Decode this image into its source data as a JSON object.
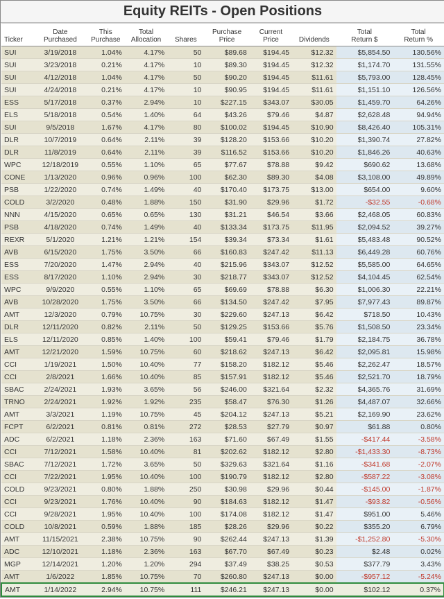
{
  "title": "Equity REITs - Open Positions",
  "styling": {
    "body_bg": "#ffffff",
    "tan_odd": "#e5e2cf",
    "tan_even": "#efede0",
    "blue_odd": "#dde8f0",
    "blue_even": "#e9f1f7",
    "neg_color": "#c0392b",
    "hl_border": "#2e8b3d",
    "font": "Arial",
    "title_fontsize": 20,
    "cell_fontsize": 10.5,
    "header_fontsize": 10
  },
  "columns": [
    "Ticker",
    "Date Purchased",
    "This Purchase",
    "Total Allocation",
    "Shares",
    "Purchase Price",
    "Current Price",
    "Dividends",
    "Total Return $",
    "Total Return %"
  ],
  "rows": [
    {
      "tk": "SUI",
      "dt": "3/19/2018",
      "tp": "1.04%",
      "ta": "4.17%",
      "sh": "50",
      "pp": "$89.68",
      "cp": "$194.45",
      "dv": "$12.32",
      "tr": "$5,854.50",
      "trp": "130.56%"
    },
    {
      "tk": "SUI",
      "dt": "3/23/2018",
      "tp": "0.21%",
      "ta": "4.17%",
      "sh": "10",
      "pp": "$89.30",
      "cp": "$194.45",
      "dv": "$12.32",
      "tr": "$1,174.70",
      "trp": "131.55%"
    },
    {
      "tk": "SUI",
      "dt": "4/12/2018",
      "tp": "1.04%",
      "ta": "4.17%",
      "sh": "50",
      "pp": "$90.20",
      "cp": "$194.45",
      "dv": "$11.61",
      "tr": "$5,793.00",
      "trp": "128.45%"
    },
    {
      "tk": "SUI",
      "dt": "4/24/2018",
      "tp": "0.21%",
      "ta": "4.17%",
      "sh": "10",
      "pp": "$90.95",
      "cp": "$194.45",
      "dv": "$11.61",
      "tr": "$1,151.10",
      "trp": "126.56%"
    },
    {
      "tk": "ESS",
      "dt": "5/17/2018",
      "tp": "0.37%",
      "ta": "2.94%",
      "sh": "10",
      "pp": "$227.15",
      "cp": "$343.07",
      "dv": "$30.05",
      "tr": "$1,459.70",
      "trp": "64.26%"
    },
    {
      "tk": "ELS",
      "dt": "5/18/2018",
      "tp": "0.54%",
      "ta": "1.40%",
      "sh": "64",
      "pp": "$43.26",
      "cp": "$79.46",
      "dv": "$4.87",
      "tr": "$2,628.48",
      "trp": "94.94%"
    },
    {
      "tk": "SUI",
      "dt": "9/5/2018",
      "tp": "1.67%",
      "ta": "4.17%",
      "sh": "80",
      "pp": "$100.02",
      "cp": "$194.45",
      "dv": "$10.90",
      "tr": "$8,426.40",
      "trp": "105.31%"
    },
    {
      "tk": "DLR",
      "dt": "10/7/2019",
      "tp": "0.64%",
      "ta": "2.11%",
      "sh": "39",
      "pp": "$128.20",
      "cp": "$153.66",
      "dv": "$10.20",
      "tr": "$1,390.74",
      "trp": "27.82%"
    },
    {
      "tk": "DLR",
      "dt": "11/8/2019",
      "tp": "0.64%",
      "ta": "2.11%",
      "sh": "39",
      "pp": "$116.52",
      "cp": "$153.66",
      "dv": "$10.20",
      "tr": "$1,846.26",
      "trp": "40.63%"
    },
    {
      "tk": "WPC",
      "dt": "12/18/2019",
      "tp": "0.55%",
      "ta": "1.10%",
      "sh": "65",
      "pp": "$77.67",
      "cp": "$78.88",
      "dv": "$9.42",
      "tr": "$690.62",
      "trp": "13.68%"
    },
    {
      "tk": "CONE",
      "dt": "1/13/2020",
      "tp": "0.96%",
      "ta": "0.96%",
      "sh": "100",
      "pp": "$62.30",
      "cp": "$89.30",
      "dv": "$4.08",
      "tr": "$3,108.00",
      "trp": "49.89%"
    },
    {
      "tk": "PSB",
      "dt": "1/22/2020",
      "tp": "0.74%",
      "ta": "1.49%",
      "sh": "40",
      "pp": "$170.40",
      "cp": "$173.75",
      "dv": "$13.00",
      "tr": "$654.00",
      "trp": "9.60%"
    },
    {
      "tk": "COLD",
      "dt": "3/2/2020",
      "tp": "0.48%",
      "ta": "1.88%",
      "sh": "150",
      "pp": "$31.90",
      "cp": "$29.96",
      "dv": "$1.72",
      "tr": "-$32.55",
      "trp": "-0.68%",
      "neg": true
    },
    {
      "tk": "NNN",
      "dt": "4/15/2020",
      "tp": "0.65%",
      "ta": "0.65%",
      "sh": "130",
      "pp": "$31.21",
      "cp": "$46.54",
      "dv": "$3.66",
      "tr": "$2,468.05",
      "trp": "60.83%"
    },
    {
      "tk": "PSB",
      "dt": "4/18/2020",
      "tp": "0.74%",
      "ta": "1.49%",
      "sh": "40",
      "pp": "$133.34",
      "cp": "$173.75",
      "dv": "$11.95",
      "tr": "$2,094.52",
      "trp": "39.27%"
    },
    {
      "tk": "REXR",
      "dt": "5/1/2020",
      "tp": "1.21%",
      "ta": "1.21%",
      "sh": "154",
      "pp": "$39.34",
      "cp": "$73.34",
      "dv": "$1.61",
      "tr": "$5,483.48",
      "trp": "90.52%"
    },
    {
      "tk": "AVB",
      "dt": "6/15/2020",
      "tp": "1.75%",
      "ta": "3.50%",
      "sh": "66",
      "pp": "$160.83",
      "cp": "$247.42",
      "dv": "$11.13",
      "tr": "$6,449.28",
      "trp": "60.76%"
    },
    {
      "tk": "ESS",
      "dt": "7/20/2020",
      "tp": "1.47%",
      "ta": "2.94%",
      "sh": "40",
      "pp": "$215.96",
      "cp": "$343.07",
      "dv": "$12.52",
      "tr": "$5,585.00",
      "trp": "64.65%"
    },
    {
      "tk": "ESS",
      "dt": "8/17/2020",
      "tp": "1.10%",
      "ta": "2.94%",
      "sh": "30",
      "pp": "$218.77",
      "cp": "$343.07",
      "dv": "$12.52",
      "tr": "$4,104.45",
      "trp": "62.54%"
    },
    {
      "tk": "WPC",
      "dt": "9/9/2020",
      "tp": "0.55%",
      "ta": "1.10%",
      "sh": "65",
      "pp": "$69.69",
      "cp": "$78.88",
      "dv": "$6.30",
      "tr": "$1,006.30",
      "trp": "22.21%"
    },
    {
      "tk": "AVB",
      "dt": "10/28/2020",
      "tp": "1.75%",
      "ta": "3.50%",
      "sh": "66",
      "pp": "$134.50",
      "cp": "$247.42",
      "dv": "$7.95",
      "tr": "$7,977.43",
      "trp": "89.87%"
    },
    {
      "tk": "AMT",
      "dt": "12/3/2020",
      "tp": "0.79%",
      "ta": "10.75%",
      "sh": "30",
      "pp": "$229.60",
      "cp": "$247.13",
      "dv": "$6.42",
      "tr": "$718.50",
      "trp": "10.43%"
    },
    {
      "tk": "DLR",
      "dt": "12/11/2020",
      "tp": "0.82%",
      "ta": "2.11%",
      "sh": "50",
      "pp": "$129.25",
      "cp": "$153.66",
      "dv": "$5.76",
      "tr": "$1,508.50",
      "trp": "23.34%"
    },
    {
      "tk": "ELS",
      "dt": "12/11/2020",
      "tp": "0.85%",
      "ta": "1.40%",
      "sh": "100",
      "pp": "$59.41",
      "cp": "$79.46",
      "dv": "$1.79",
      "tr": "$2,184.75",
      "trp": "36.78%"
    },
    {
      "tk": "AMT",
      "dt": "12/21/2020",
      "tp": "1.59%",
      "ta": "10.75%",
      "sh": "60",
      "pp": "$218.62",
      "cp": "$247.13",
      "dv": "$6.42",
      "tr": "$2,095.81",
      "trp": "15.98%"
    },
    {
      "tk": "CCI",
      "dt": "1/19/2021",
      "tp": "1.50%",
      "ta": "10.40%",
      "sh": "77",
      "pp": "$158.20",
      "cp": "$182.12",
      "dv": "$5.46",
      "tr": "$2,262.47",
      "trp": "18.57%"
    },
    {
      "tk": "CCI",
      "dt": "2/8/2021",
      "tp": "1.66%",
      "ta": "10.40%",
      "sh": "85",
      "pp": "$157.91",
      "cp": "$182.12",
      "dv": "$5.46",
      "tr": "$2,521.70",
      "trp": "18.79%"
    },
    {
      "tk": "SBAC",
      "dt": "2/24/2021",
      "tp": "1.93%",
      "ta": "3.65%",
      "sh": "56",
      "pp": "$246.00",
      "cp": "$321.64",
      "dv": "$2.32",
      "tr": "$4,365.76",
      "trp": "31.69%"
    },
    {
      "tk": "TRNO",
      "dt": "2/24/2021",
      "tp": "1.92%",
      "ta": "1.92%",
      "sh": "235",
      "pp": "$58.47",
      "cp": "$76.30",
      "dv": "$1.26",
      "tr": "$4,487.07",
      "trp": "32.66%"
    },
    {
      "tk": "AMT",
      "dt": "3/3/2021",
      "tp": "1.19%",
      "ta": "10.75%",
      "sh": "45",
      "pp": "$204.12",
      "cp": "$247.13",
      "dv": "$5.21",
      "tr": "$2,169.90",
      "trp": "23.62%"
    },
    {
      "tk": "FCPT",
      "dt": "6/2/2021",
      "tp": "0.81%",
      "ta": "0.81%",
      "sh": "272",
      "pp": "$28.53",
      "cp": "$27.79",
      "dv": "$0.97",
      "tr": "$61.88",
      "trp": "0.80%"
    },
    {
      "tk": "ADC",
      "dt": "6/2/2021",
      "tp": "1.18%",
      "ta": "2.36%",
      "sh": "163",
      "pp": "$71.60",
      "cp": "$67.49",
      "dv": "$1.55",
      "tr": "-$417.44",
      "trp": "-3.58%",
      "neg": true
    },
    {
      "tk": "CCI",
      "dt": "7/12/2021",
      "tp": "1.58%",
      "ta": "10.40%",
      "sh": "81",
      "pp": "$202.62",
      "cp": "$182.12",
      "dv": "$2.80",
      "tr": "-$1,433.30",
      "trp": "-8.73%",
      "neg": true
    },
    {
      "tk": "SBAC",
      "dt": "7/12/2021",
      "tp": "1.72%",
      "ta": "3.65%",
      "sh": "50",
      "pp": "$329.63",
      "cp": "$321.64",
      "dv": "$1.16",
      "tr": "-$341.68",
      "trp": "-2.07%",
      "neg": true
    },
    {
      "tk": "CCI",
      "dt": "7/22/2021",
      "tp": "1.95%",
      "ta": "10.40%",
      "sh": "100",
      "pp": "$190.79",
      "cp": "$182.12",
      "dv": "$2.80",
      "tr": "-$587.22",
      "trp": "-3.08%",
      "neg": true
    },
    {
      "tk": "COLD",
      "dt": "9/23/2021",
      "tp": "0.80%",
      "ta": "1.88%",
      "sh": "250",
      "pp": "$30.98",
      "cp": "$29.96",
      "dv": "$0.44",
      "tr": "-$145.00",
      "trp": "-1.87%",
      "neg": true
    },
    {
      "tk": "CCI",
      "dt": "9/23/2021",
      "tp": "1.76%",
      "ta": "10.40%",
      "sh": "90",
      "pp": "$184.63",
      "cp": "$182.12",
      "dv": "$1.47",
      "tr": "-$93.82",
      "trp": "-0.56%",
      "neg": true
    },
    {
      "tk": "CCI",
      "dt": "9/28/2021",
      "tp": "1.95%",
      "ta": "10.40%",
      "sh": "100",
      "pp": "$174.08",
      "cp": "$182.12",
      "dv": "$1.47",
      "tr": "$951.00",
      "trp": "5.46%"
    },
    {
      "tk": "COLD",
      "dt": "10/8/2021",
      "tp": "0.59%",
      "ta": "1.88%",
      "sh": "185",
      "pp": "$28.26",
      "cp": "$29.96",
      "dv": "$0.22",
      "tr": "$355.20",
      "trp": "6.79%"
    },
    {
      "tk": "AMT",
      "dt": "11/15/2021",
      "tp": "2.38%",
      "ta": "10.75%",
      "sh": "90",
      "pp": "$262.44",
      "cp": "$247.13",
      "dv": "$1.39",
      "tr": "-$1,252.80",
      "trp": "-5.30%",
      "neg": true
    },
    {
      "tk": "ADC",
      "dt": "12/10/2021",
      "tp": "1.18%",
      "ta": "2.36%",
      "sh": "163",
      "pp": "$67.70",
      "cp": "$67.49",
      "dv": "$0.23",
      "tr": "$2.48",
      "trp": "0.02%"
    },
    {
      "tk": "MGP",
      "dt": "12/14/2021",
      "tp": "1.20%",
      "ta": "1.20%",
      "sh": "294",
      "pp": "$37.49",
      "cp": "$38.25",
      "dv": "$0.53",
      "tr": "$377.79",
      "trp": "3.43%"
    },
    {
      "tk": "AMT",
      "dt": "1/6/2022",
      "tp": "1.85%",
      "ta": "10.75%",
      "sh": "70",
      "pp": "$260.80",
      "cp": "$247.13",
      "dv": "$0.00",
      "tr": "-$957.12",
      "trp": "-5.24%",
      "neg": true
    },
    {
      "tk": "AMT",
      "dt": "1/14/2022",
      "tp": "2.94%",
      "ta": "10.75%",
      "sh": "111",
      "pp": "$246.21",
      "cp": "$247.13",
      "dv": "$0.00",
      "tr": "$102.12",
      "trp": "0.37%",
      "hl": true
    }
  ]
}
